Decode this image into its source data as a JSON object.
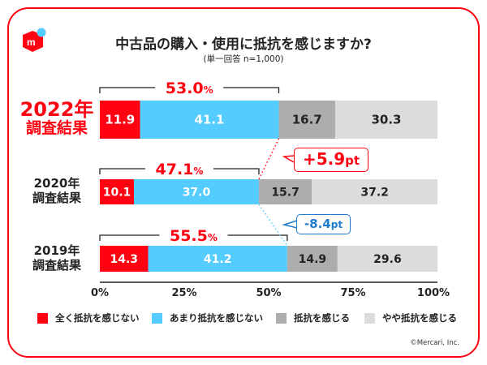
{
  "title": "中古品の購入・使用に抵抗を感じますか?",
  "subtitle": "(単一回答 n=1,000)",
  "copyright": "©Mercari, Inc.",
  "colors": {
    "brand": "#ff0211",
    "series": [
      "#ff0211",
      "#55ccff",
      "#adadad",
      "#dcdcdc"
    ],
    "callout_up": "#ff0211",
    "callout_down": "#1f7ccc"
  },
  "chart_data": {
    "type": "bar",
    "orientation": "horizontal-stacked-100",
    "categories": [
      {
        "year": "2022年",
        "sub": "調査結果"
      },
      {
        "year": "2020年",
        "sub": "調査結果"
      },
      {
        "year": "2019年",
        "sub": "調査結果"
      }
    ],
    "series": [
      {
        "name": "全く抵抗を感じない",
        "values": [
          11.9,
          10.1,
          14.3
        ]
      },
      {
        "name": "あまり抵抗を感じない",
        "values": [
          41.1,
          37.0,
          41.2
        ]
      },
      {
        "name": "抵抗を感じる",
        "values": [
          16.7,
          15.7,
          14.9
        ]
      },
      {
        "name": "やや抵抗を感じる",
        "values": [
          30.3,
          37.2,
          29.6
        ]
      }
    ],
    "bracket_totals": [
      "53.0",
      "47.1",
      "55.5"
    ],
    "bracket_unit": "%",
    "xticks": [
      "0%",
      "25%",
      "50%",
      "75%",
      "100%"
    ],
    "xlim": [
      0,
      100
    ],
    "annotations": [
      {
        "text_num": "+5.9",
        "unit": "pt"
      },
      {
        "text_num": "-8.4",
        "unit": "pt"
      }
    ],
    "legend_position": "bottom"
  }
}
